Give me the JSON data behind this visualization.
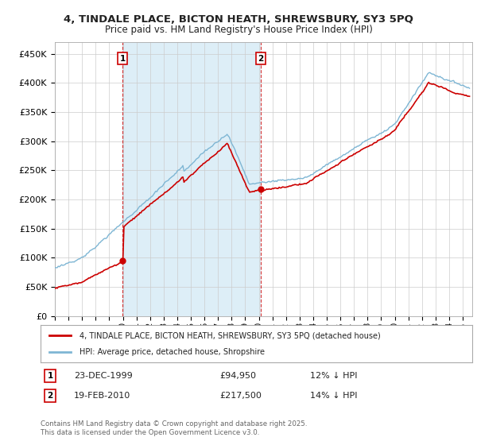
{
  "title": "4, TINDALE PLACE, BICTON HEATH, SHREWSBURY, SY3 5PQ",
  "subtitle": "Price paid vs. HM Land Registry's House Price Index (HPI)",
  "legend_label_red": "4, TINDALE PLACE, BICTON HEATH, SHREWSBURY, SY3 5PQ (detached house)",
  "legend_label_blue": "HPI: Average price, detached house, Shropshire",
  "red_color": "#cc0000",
  "blue_color": "#7eb6d4",
  "shade_color": "#ddeef7",
  "annotation1_label": "1",
  "annotation1_date": "23-DEC-1999",
  "annotation1_price": "£94,950",
  "annotation1_hpi": "12% ↓ HPI",
  "annotation2_label": "2",
  "annotation2_date": "19-FEB-2010",
  "annotation2_price": "£217,500",
  "annotation2_hpi": "14% ↓ HPI",
  "footer": "Contains HM Land Registry data © Crown copyright and database right 2025.\nThis data is licensed under the Open Government Licence v3.0.",
  "background_color": "#ffffff",
  "grid_color": "#cccccc",
  "ylim": [
    0,
    470000
  ],
  "yticks": [
    0,
    50000,
    100000,
    150000,
    200000,
    250000,
    300000,
    350000,
    400000,
    450000
  ],
  "ytick_labels": [
    "£0",
    "£50K",
    "£100K",
    "£150K",
    "£200K",
    "£250K",
    "£300K",
    "£350K",
    "£400K",
    "£450K"
  ],
  "xlim_start": 1995.0,
  "xlim_end": 2025.7,
  "sale1_t": 1999.975,
  "sale1_price": 94950,
  "sale2_t": 2010.133,
  "sale2_price": 217500
}
